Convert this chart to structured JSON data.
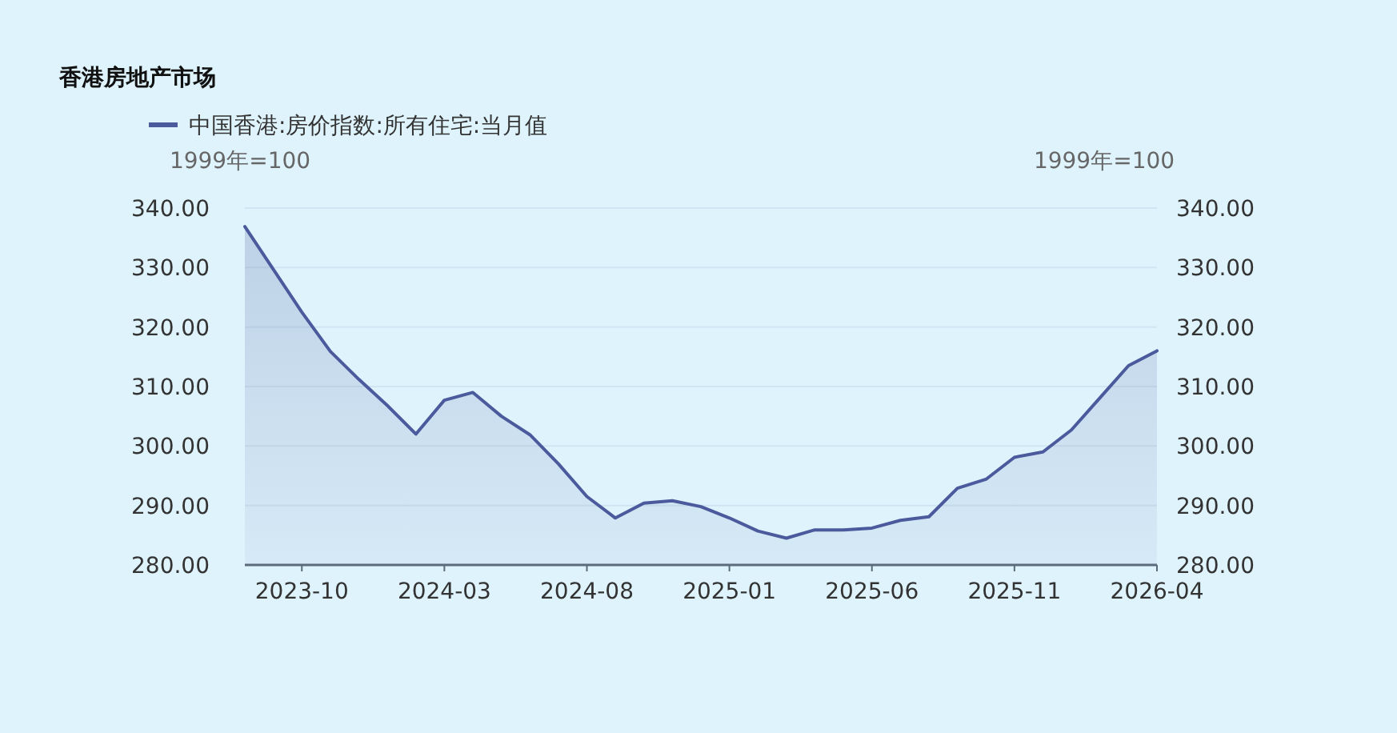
{
  "chart_data": {
    "type": "area",
    "title": "香港房地产市场",
    "ylabel": "1999年=100",
    "y2label": "1999年=100",
    "legend": "top",
    "marker": "none",
    "grid": "y",
    "x": [
      "2023-08",
      "2023-09",
      "2023-10",
      "2023-11",
      "2023-12",
      "2024-01",
      "2024-02",
      "2024-03",
      "2024-04",
      "2024-05",
      "2024-06",
      "2024-07",
      "2024-08",
      "2024-09",
      "2024-10",
      "2024-11",
      "2024-12",
      "2025-01",
      "2025-02",
      "2025-03",
      "2025-04",
      "2025-05",
      "2025-06",
      "2025-07",
      "2025-08",
      "2025-09",
      "2025-10",
      "2025-11",
      "2025-12",
      "2026-01",
      "2026-02",
      "2026-03",
      "2026-04"
    ],
    "xlim": [
      "2023-08",
      "2026-04"
    ],
    "xticks": [
      "2023-10",
      "2024-03",
      "2024-08",
      "2025-01",
      "2025-06",
      "2025-11",
      "2026-04"
    ],
    "ylim": [
      280,
      340
    ],
    "yticks": [
      {
        "value": 280,
        "label": "280.00"
      },
      {
        "value": 290,
        "label": "290.00"
      },
      {
        "value": 300,
        "label": "300.00"
      },
      {
        "value": 310,
        "label": "310.00"
      },
      {
        "value": 320,
        "label": "320.00"
      },
      {
        "value": 330,
        "label": "330.00"
      },
      {
        "value": 340,
        "label": "340.00"
      }
    ],
    "y2lim": [
      280,
      340
    ],
    "y2ticks": [
      {
        "value": 280,
        "label": "280.00"
      },
      {
        "value": 290,
        "label": "290.00"
      },
      {
        "value": 300,
        "label": "300.00"
      },
      {
        "value": 310,
        "label": "310.00"
      },
      {
        "value": 320,
        "label": "320.00"
      },
      {
        "value": 330,
        "label": "330.00"
      },
      {
        "value": 340,
        "label": "340.00"
      }
    ],
    "series": [
      {
        "name": "中国香港:房价指数:所有住宅:当月值",
        "color": "#4a5a9c",
        "values": [
          336.9,
          329.7,
          322.5,
          315.9,
          311.2,
          306.8,
          302.0,
          307.7,
          309.0,
          305.0,
          301.9,
          297.0,
          291.5,
          287.9,
          290.4,
          290.8,
          289.8,
          287.9,
          285.7,
          284.5,
          285.9,
          285.9,
          286.2,
          287.5,
          288.1,
          292.9,
          294.4,
          298.1,
          299.0,
          302.7,
          308.1,
          313.5,
          316.0
        ]
      }
    ]
  }
}
